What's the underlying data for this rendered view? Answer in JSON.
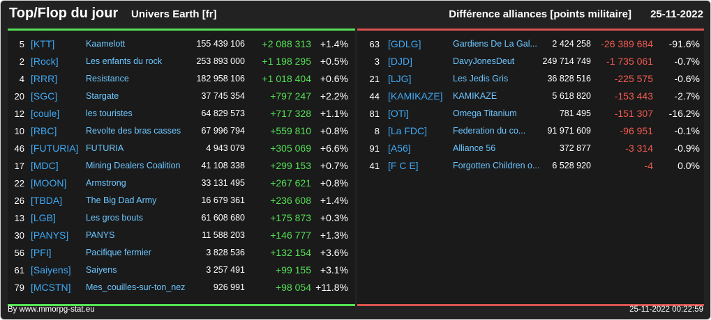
{
  "header": {
    "title": "Top/Flop du jour",
    "subtitle": "Univers Earth [fr]",
    "diff_title": "Différence alliances [points militaire]",
    "date": "25-11-2022"
  },
  "colors": {
    "background": "#222222",
    "panel": "#1a1a1a",
    "top_accent": "#55e055",
    "flop_accent": "#d9534f",
    "tag": "#3fa9f5",
    "name": "#6cc6ff"
  },
  "top": [
    {
      "rank": "5",
      "tag": "[KTT]",
      "name": "Kaamelott",
      "points": "155 439 106",
      "diff": "+2 088 313",
      "pct": "+1.4%"
    },
    {
      "rank": "2",
      "tag": "[Rock]",
      "name": "Les enfants du rock",
      "points": "253 893 000",
      "diff": "+1 198 295",
      "pct": "+0.5%"
    },
    {
      "rank": "4",
      "tag": "[RRR]",
      "name": "Resistance",
      "points": "182 958 106",
      "diff": "+1 018 404",
      "pct": "+0.6%"
    },
    {
      "rank": "20",
      "tag": "[SGC]",
      "name": "Stargate",
      "points": "37 745 354",
      "diff": "+797 247",
      "pct": "+2.2%"
    },
    {
      "rank": "12",
      "tag": "[coule]",
      "name": "les touristes",
      "points": "64 829 573",
      "diff": "+717 328",
      "pct": "+1.1%"
    },
    {
      "rank": "10",
      "tag": "[RBC]",
      "name": "Revolte des bras casses",
      "points": "67 996 794",
      "diff": "+559 810",
      "pct": "+0.8%"
    },
    {
      "rank": "46",
      "tag": "[FUTURIA]",
      "name": "FUTURIA",
      "points": "4 943 079",
      "diff": "+305 069",
      "pct": "+6.6%"
    },
    {
      "rank": "17",
      "tag": "[MDC]",
      "name": "Mining Dealers Coalition",
      "points": "41 108 338",
      "diff": "+299 153",
      "pct": "+0.7%"
    },
    {
      "rank": "22",
      "tag": "[MOON]",
      "name": "Armstrong",
      "points": "33 131 495",
      "diff": "+267 621",
      "pct": "+0.8%"
    },
    {
      "rank": "26",
      "tag": "[TBDA]",
      "name": "The Big Dad Army",
      "points": "16 679 361",
      "diff": "+236 608",
      "pct": "+1.4%"
    },
    {
      "rank": "13",
      "tag": "[LGB]",
      "name": "Les gros bouts",
      "points": "61 608 680",
      "diff": "+175 873",
      "pct": "+0.3%"
    },
    {
      "rank": "30",
      "tag": "[PANYS]",
      "name": "PANYS",
      "points": "11 588 203",
      "diff": "+146 777",
      "pct": "+1.3%"
    },
    {
      "rank": "56",
      "tag": "[PFI]",
      "name": "Pacifique fermier",
      "points": "3 828 536",
      "diff": "+132 154",
      "pct": "+3.6%"
    },
    {
      "rank": "61",
      "tag": "[Saiyens]",
      "name": "Saiyens",
      "points": "3 257 491",
      "diff": "+99 155",
      "pct": "+3.1%"
    },
    {
      "rank": "79",
      "tag": "[MCSTN]",
      "name": "Mes_couilles-sur-ton_nez",
      "points": "926 991",
      "diff": "+98 054",
      "pct": "+11.8%"
    }
  ],
  "flop": [
    {
      "rank": "63",
      "tag": "[GDLG]",
      "name": "Gardiens De La Gal...",
      "points": "2 424 258",
      "diff": "-26 389 684",
      "pct": "-91.6%"
    },
    {
      "rank": "3",
      "tag": "[DJD]",
      "name": "DavyJonesDeut",
      "points": "249 714 749",
      "diff": "-1 735 061",
      "pct": "-0.7%"
    },
    {
      "rank": "21",
      "tag": "[LJG]",
      "name": "Les Jedis Gris",
      "points": "36 828 516",
      "diff": "-225 575",
      "pct": "-0.6%"
    },
    {
      "rank": "44",
      "tag": "[KAMIKAZE]",
      "name": "KAMIKAZE",
      "points": "5 618 820",
      "diff": "-153 443",
      "pct": "-2.7%"
    },
    {
      "rank": "81",
      "tag": "[OTi]",
      "name": "Omega Titanium",
      "points": "781 495",
      "diff": "-151 307",
      "pct": "-16.2%"
    },
    {
      "rank": "8",
      "tag": "[La FDC]",
      "name": "Federation du co...",
      "points": "91 971 609",
      "diff": "-96 951",
      "pct": "-0.1%"
    },
    {
      "rank": "91",
      "tag": "[A56]",
      "name": "Alliance 56",
      "points": "372 877",
      "diff": "-3 314",
      "pct": "-0.9%"
    },
    {
      "rank": "41",
      "tag": "[F C E]",
      "name": "Forgotten Children o...",
      "points": "6 528 920",
      "diff": "-4",
      "pct": "0.0%"
    }
  ],
  "footer": {
    "source": "By www.mmorpg-stat.eu",
    "timestamp": "25-11-2022 00:22:59"
  }
}
